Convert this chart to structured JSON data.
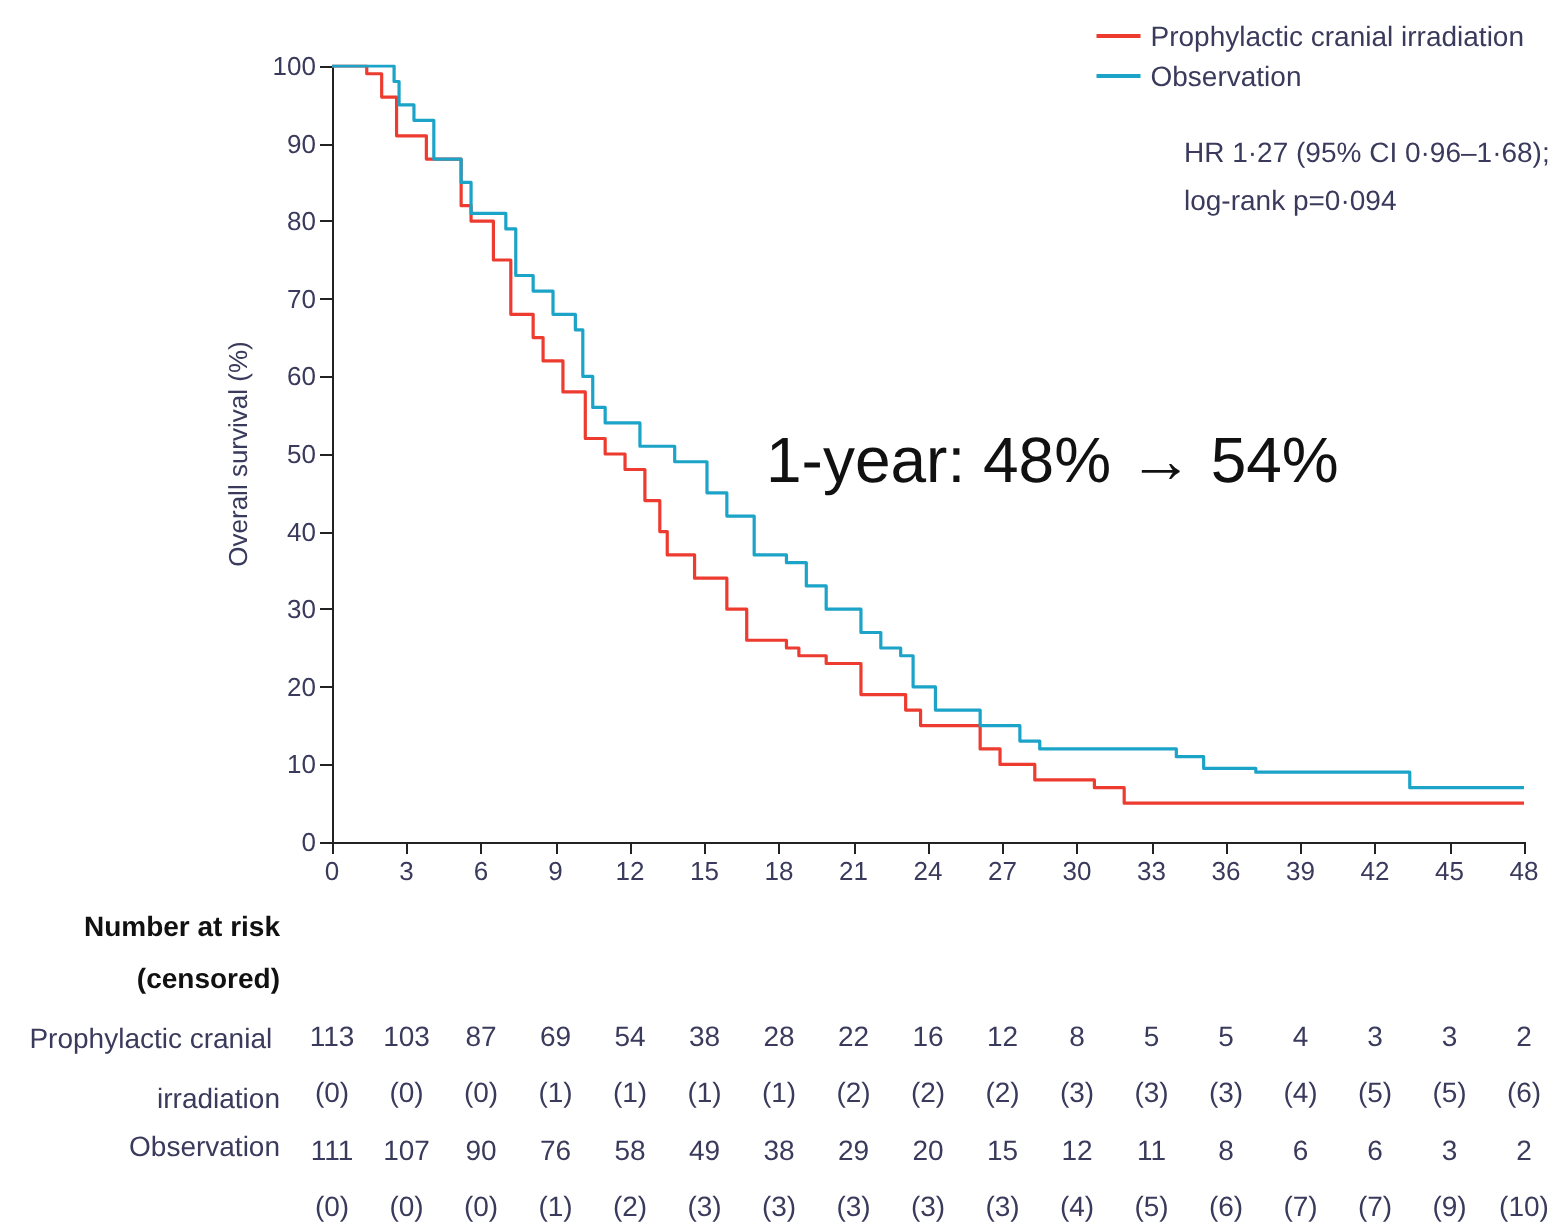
{
  "chart_data": {
    "type": "step",
    "ylabel": "Overall survival (%)",
    "xlim": [
      0,
      48
    ],
    "xticks": [
      0,
      3,
      6,
      9,
      12,
      15,
      18,
      21,
      24,
      27,
      30,
      33,
      36,
      39,
      42,
      45,
      48
    ],
    "ylim": [
      0,
      100
    ],
    "yticks": [
      0,
      10,
      20,
      30,
      40,
      50,
      60,
      70,
      80,
      90,
      100
    ],
    "grid": false,
    "legend": "top right",
    "marker": "none",
    "line_style": "solid",
    "series": [
      {
        "name": "Prophylactic cranial irradiation",
        "color": "#ee3b2f",
        "x": [
          0,
          1.4,
          2,
          2.6,
          3.8,
          5.2,
          5.6,
          6.5,
          7.2,
          8.1,
          8.5,
          9.3,
          10.2,
          11,
          11.8,
          12.6,
          13.2,
          13.5,
          14.6,
          15.9,
          16.7,
          18.3,
          18.8,
          19.9,
          21.3,
          23.1,
          23.7,
          26.1,
          26.9,
          28.3,
          30.7,
          31.9,
          48
        ],
        "values": [
          100,
          99,
          96,
          91,
          88,
          82,
          80,
          75,
          68,
          65,
          62,
          58,
          52,
          50,
          48,
          44,
          40,
          37,
          34,
          30,
          26,
          25,
          24,
          23,
          19,
          17,
          15,
          12,
          10,
          8,
          7,
          5,
          5
        ]
      },
      {
        "name": "Observation",
        "color": "#1ba3c8",
        "x": [
          0,
          2.5,
          2.7,
          3.3,
          4.1,
          5.2,
          5.6,
          7,
          7.4,
          8.1,
          8.9,
          9.8,
          10.1,
          10.5,
          11,
          12.4,
          13.8,
          15.1,
          15.9,
          17,
          18.3,
          19.1,
          19.9,
          21.3,
          22.1,
          22.9,
          23.4,
          24.3,
          26.1,
          27.7,
          28.5,
          34,
          35.1,
          37.2,
          43.4,
          48
        ],
        "values": [
          100,
          98,
          95,
          93,
          88,
          85,
          81,
          79,
          73,
          71,
          68,
          66,
          60,
          56,
          54,
          51,
          49,
          45,
          42,
          37,
          36,
          33,
          30,
          27,
          25,
          24,
          20,
          17,
          15,
          13,
          12,
          11,
          9.5,
          9,
          7,
          7
        ]
      }
    ],
    "annotations": [
      "HR 1·27 (95% CI 0·96–1·68);",
      "log-rank p=0·094",
      "1-year: 48% → 54%",
      "Number at risk",
      "(censored)",
      "Prophylactic cranial irradiation",
      "113 103 87 69 54 38 28 22 16 12 8 5 5 4 3 3 2",
      "(0) (0) (0) (1) (1) (1) (1) (2) (2) (2) (3) (3) (3) (4) (5) (5) (6)",
      "Observation",
      "111 107 90 76 58 49 38 29 20 15 12 11 8 6 6 3 2",
      "(0) (0) (0) (1) (2) (3) (3) (3) (3) (3) (4) (5) (6) (7) (7) (9) (10)"
    ]
  }
}
